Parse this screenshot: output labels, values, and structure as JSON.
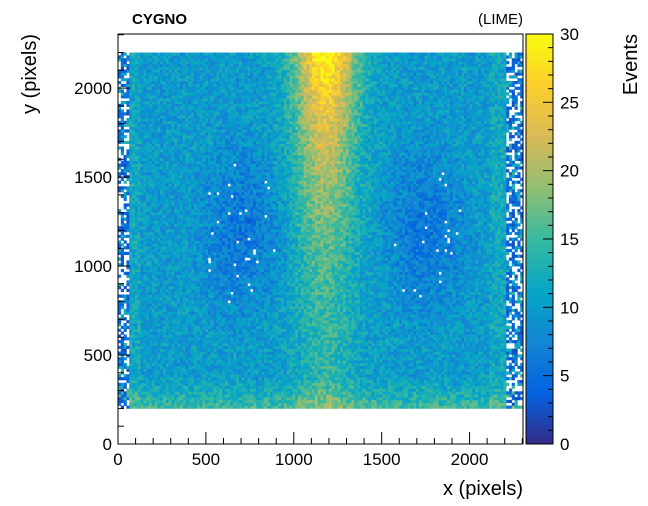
{
  "chart_data": {
    "type": "heatmap",
    "top_left_label": "CYGNO",
    "top_right_label": "(LIME)",
    "xlabel": "x (pixels)",
    "ylabel": "y (pixels)",
    "zlabel": "Events",
    "xlim": [
      0,
      2304
    ],
    "ylim": [
      0,
      2304
    ],
    "zlim": [
      0,
      30
    ],
    "x_ticks": [
      0,
      500,
      1000,
      1500,
      2000
    ],
    "y_ticks": [
      0,
      500,
      1000,
      1500,
      2000
    ],
    "z_ticks": [
      0,
      5,
      10,
      15,
      20,
      25,
      30
    ],
    "data_region": {
      "x": [
        0,
        2304
      ],
      "y": [
        200,
        2200
      ]
    },
    "grid": false,
    "colorbar": "right",
    "colormap": [
      "#352a87",
      "#0363e1",
      "#1485d4",
      "#06a7c6",
      "#38b99e",
      "#92bf73",
      "#d9ba56",
      "#fcce2e",
      "#f9fb0e"
    ],
    "intensity_profile": {
      "background_events": 10,
      "low_regions_events": 6,
      "central_band_center_x": 1180,
      "central_band_events_top": 30,
      "central_band_events_bottom": 14,
      "bottom_edge_events": 15,
      "edge_sparse_columns": [
        0,
        60,
        2200,
        2304
      ]
    }
  }
}
